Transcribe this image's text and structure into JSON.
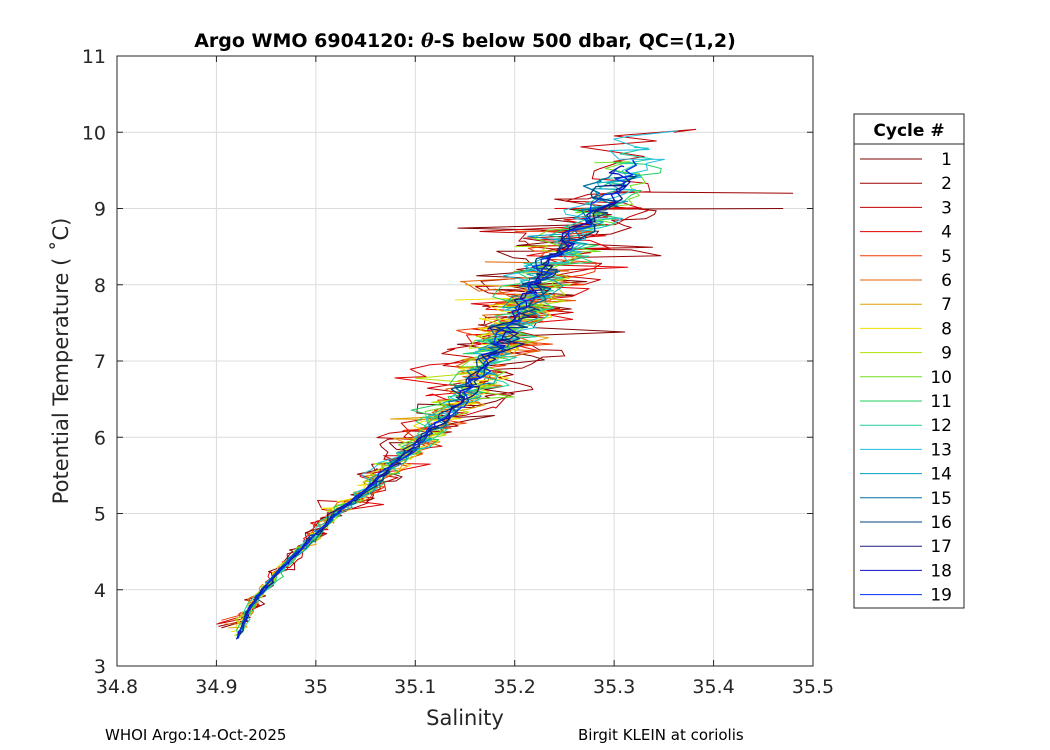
{
  "chart_data": {
    "type": "line",
    "title": "Argo WMO 6904120: θ-S below 500 dbar,  QC=(1,2)",
    "title_parts": {
      "prefix": "Argo WMO 6904120: ",
      "theta": "θ",
      "suffix": "-S below 500 dbar,  QC=(1,2)"
    },
    "xlabel": "Salinity",
    "ylabel": "Potential Temperature ( ˚C)",
    "xlim": [
      34.8,
      35.5
    ],
    "ylim": [
      3,
      11
    ],
    "xticks": [
      "34.8",
      "34.9",
      "35",
      "35.1",
      "35.2",
      "35.3",
      "35.4",
      "35.5"
    ],
    "yticks": [
      "3",
      "4",
      "5",
      "6",
      "7",
      "8",
      "9",
      "10",
      "11"
    ],
    "grid": true,
    "legend_title": "Cycle #",
    "legend_position": "outside-right",
    "trend": {
      "S": [
        34.921,
        34.935,
        34.96,
        34.99,
        35.02,
        35.05,
        35.08,
        35.105,
        35.13,
        35.15,
        35.165,
        35.18,
        35.195,
        35.21,
        35.225,
        35.24,
        35.26,
        35.28,
        35.3,
        35.32
      ],
      "T": [
        3.35,
        3.8,
        4.2,
        4.6,
        5.0,
        5.3,
        5.65,
        5.95,
        6.25,
        6.55,
        6.85,
        7.15,
        7.45,
        7.75,
        8.05,
        8.35,
        8.65,
        8.95,
        9.25,
        9.6
      ]
    },
    "series": [
      {
        "name": "1",
        "color": "#800000",
        "spread": 0.06,
        "hi": [
          35.47,
          9.0
        ],
        "start": [
          34.905,
          3.5
        ]
      },
      {
        "name": "2",
        "color": "#9b0000",
        "spread": 0.055,
        "hi": [
          35.48,
          9.2
        ],
        "start": [
          34.902,
          3.52
        ]
      },
      {
        "name": "3",
        "color": "#c00000",
        "spread": 0.05,
        "hi": [
          35.36,
          10.0
        ],
        "start": [
          34.9,
          3.55
        ]
      },
      {
        "name": "4",
        "color": "#e00000",
        "spread": 0.048,
        "hi": [
          35.24,
          9.0
        ],
        "start": [
          34.902,
          3.56
        ]
      },
      {
        "name": "5",
        "color": "#f03c00",
        "spread": 0.045,
        "hi": [
          35.2,
          8.7
        ],
        "start": [
          34.905,
          3.6
        ]
      },
      {
        "name": "6",
        "color": "#e06000",
        "spread": 0.042,
        "hi": [
          35.17,
          8.3
        ],
        "start": [
          34.908,
          3.55
        ]
      },
      {
        "name": "7",
        "color": "#e0a000",
        "spread": 0.04,
        "hi": [
          35.15,
          8.0
        ],
        "start": [
          34.912,
          3.5
        ]
      },
      {
        "name": "8",
        "color": "#f0e000",
        "spread": 0.038,
        "hi": [
          35.14,
          7.8
        ],
        "start": [
          34.915,
          3.45
        ]
      },
      {
        "name": "9",
        "color": "#b0e000",
        "spread": 0.036,
        "hi": [
          35.2,
          8.5
        ],
        "start": [
          34.918,
          3.4
        ]
      },
      {
        "name": "10",
        "color": "#70e020",
        "spread": 0.034,
        "hi": [
          35.28,
          9.6
        ],
        "start": [
          34.92,
          3.4
        ]
      },
      {
        "name": "11",
        "color": "#20d060",
        "spread": 0.032,
        "hi": [
          35.3,
          9.6
        ],
        "start": [
          34.922,
          3.42
        ]
      },
      {
        "name": "12",
        "color": "#20d0a0",
        "spread": 0.03,
        "hi": [
          35.32,
          9.8
        ],
        "start": [
          34.925,
          3.45
        ]
      },
      {
        "name": "13",
        "color": "#20c0e0",
        "spread": 0.028,
        "hi": [
          35.35,
          10.0
        ],
        "start": [
          34.945,
          3.95
        ]
      },
      {
        "name": "14",
        "color": "#00a0c0",
        "spread": 0.024,
        "hi": [
          35.3,
          9.5
        ],
        "start": [
          34.923,
          3.4
        ]
      },
      {
        "name": "15",
        "color": "#0070a0",
        "spread": 0.018,
        "hi": [
          35.3,
          9.5
        ],
        "start": [
          34.922,
          3.38
        ]
      },
      {
        "name": "16",
        "color": "#004080",
        "spread": 0.015,
        "hi": [
          35.3,
          9.4
        ],
        "start": [
          34.921,
          3.36
        ]
      },
      {
        "name": "17",
        "color": "#1a1a80",
        "spread": 0.013,
        "hi": [
          35.29,
          9.3
        ],
        "start": [
          34.92,
          3.35
        ]
      },
      {
        "name": "18",
        "color": "#1010c0",
        "spread": 0.011,
        "hi": [
          35.31,
          9.55
        ],
        "start": [
          34.921,
          3.36
        ]
      },
      {
        "name": "19",
        "color": "#0030f0",
        "spread": 0.01,
        "hi": [
          35.32,
          9.6
        ],
        "start": [
          34.922,
          3.36
        ]
      }
    ]
  },
  "footer": {
    "left": "WHOI Argo:14-Oct-2025",
    "right": "Birgit KLEIN at coriolis"
  }
}
